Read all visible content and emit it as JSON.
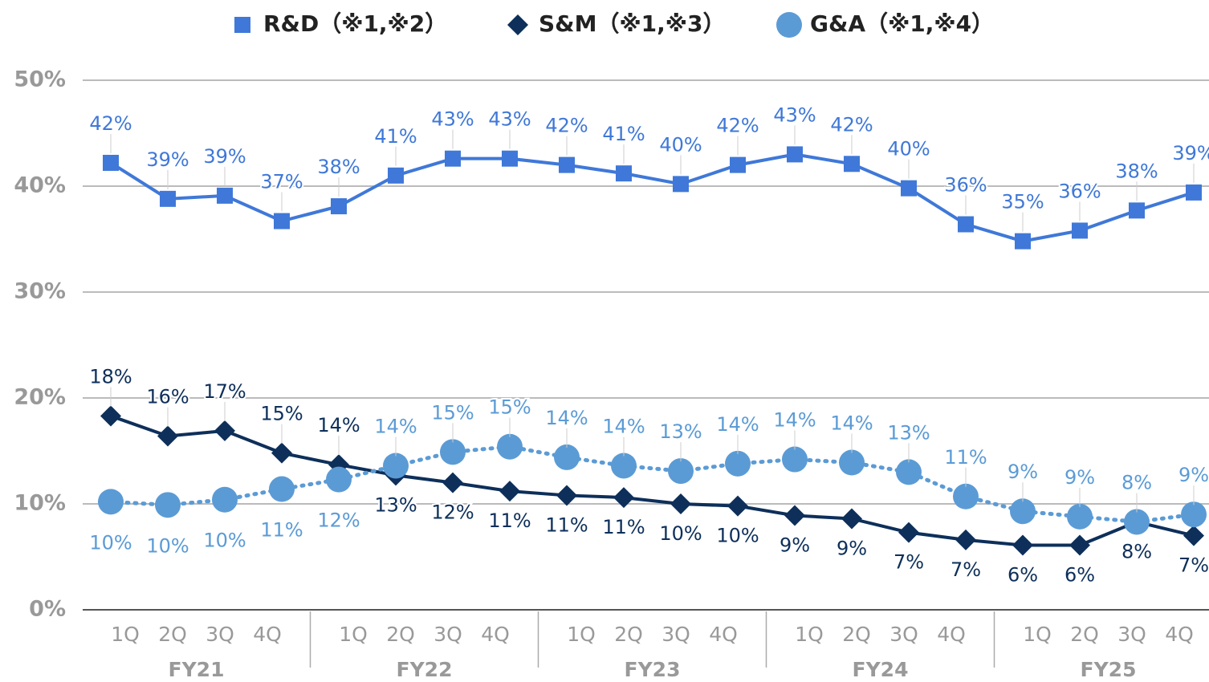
{
  "chart_data": {
    "type": "line",
    "categories": [
      "1Q",
      "2Q",
      "3Q",
      "4Q",
      "1Q",
      "2Q",
      "3Q",
      "4Q",
      "1Q",
      "2Q",
      "3Q",
      "4Q",
      "1Q",
      "2Q",
      "3Q",
      "4Q",
      "1Q",
      "2Q",
      "3Q",
      "4Q"
    ],
    "groups": [
      "FY21",
      "FY22",
      "FY23",
      "FY24",
      "FY25"
    ],
    "ylim": [
      0,
      50
    ],
    "yticks": [
      {
        "value": 0,
        "label": "0%"
      },
      {
        "value": 10,
        "label": "10%"
      },
      {
        "value": 20,
        "label": "20%"
      },
      {
        "value": 30,
        "label": "30%"
      },
      {
        "value": 40,
        "label": "40%"
      },
      {
        "value": 50,
        "label": "50%"
      }
    ],
    "grid": true,
    "legend": "top",
    "series": [
      {
        "name": "R&D（※1,※2）",
        "color": "#3f78d8",
        "marker": "square",
        "dash": false,
        "values": [
          42.2,
          38.8,
          39.1,
          36.7,
          38.1,
          41.0,
          42.6,
          42.6,
          42.0,
          41.2,
          40.2,
          42.0,
          43.0,
          42.1,
          39.8,
          36.4,
          34.8,
          35.8,
          37.7,
          39.4
        ],
        "value_labels": [
          "42%",
          "39%",
          "39%",
          "37%",
          "38%",
          "41%",
          "43%",
          "43%",
          "42%",
          "41%",
          "40%",
          "42%",
          "43%",
          "42%",
          "40%",
          "36%",
          "35%",
          "36%",
          "38%",
          "39%"
        ]
      },
      {
        "name": "S&M（※1,※3）",
        "color": "#0d2f5a",
        "marker": "diamond",
        "dash": false,
        "values": [
          18.3,
          16.4,
          16.9,
          14.8,
          13.7,
          12.7,
          12.0,
          11.2,
          10.8,
          10.6,
          10.0,
          9.8,
          8.9,
          8.6,
          7.3,
          6.6,
          6.1,
          6.1,
          8.3,
          7.0
        ],
        "value_labels": [
          "18%",
          "16%",
          "17%",
          "15%",
          "14%",
          "13%",
          "12%",
          "11%",
          "11%",
          "11%",
          "10%",
          "10%",
          "9%",
          "9%",
          "7%",
          "7%",
          "6%",
          "6%",
          "8%",
          "7%"
        ]
      },
      {
        "name": "G&A（※1,※4）",
        "color": "#5b9bd5",
        "marker": "circle",
        "dash": true,
        "values": [
          10.2,
          9.9,
          10.4,
          11.4,
          12.3,
          13.6,
          14.9,
          15.4,
          14.4,
          13.6,
          13.1,
          13.8,
          14.2,
          13.9,
          13.0,
          10.7,
          9.3,
          8.8,
          8.3,
          9.0
        ],
        "value_labels": [
          "10%",
          "10%",
          "10%",
          "11%",
          "12%",
          "14%",
          "15%",
          "15%",
          "14%",
          "14%",
          "13%",
          "14%",
          "14%",
          "14%",
          "13%",
          "11%",
          "9%",
          "9%",
          "8%",
          "9%"
        ]
      }
    ]
  }
}
